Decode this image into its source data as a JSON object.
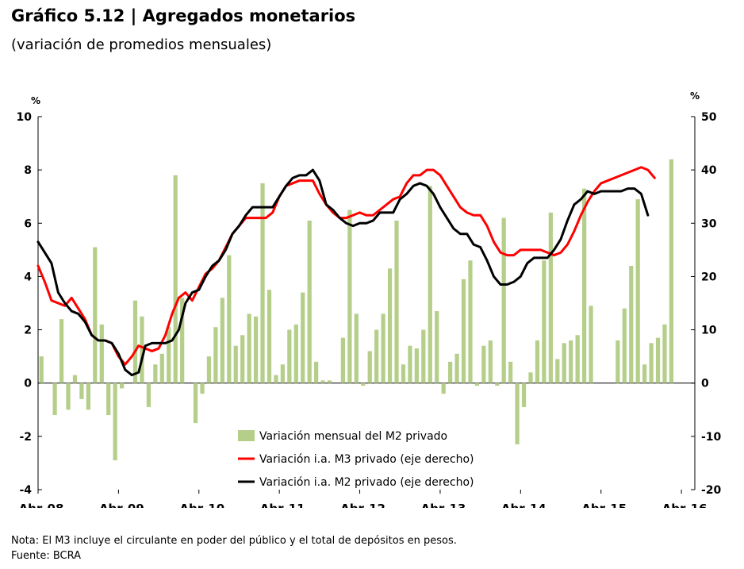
{
  "header": {
    "title": "Gráfico 5.12 | Agregados monetarios",
    "subtitle": "(variación de promedios mensuales)"
  },
  "footer": {
    "note": "Nota: El M3 incluye el circulante en poder del público y el total de depósitos en pesos.",
    "source": "Fuente: BCRA"
  },
  "chart_data": {
    "type": "bar+line",
    "left_axis": {
      "unit": "%",
      "min": -4,
      "max": 10,
      "ticks": [
        -4,
        -2,
        0,
        2,
        4,
        6,
        8,
        10
      ]
    },
    "right_axis": {
      "unit": "%",
      "min": -20,
      "max": 50,
      "ticks": [
        -20,
        -10,
        0,
        10,
        20,
        30,
        40,
        50
      ]
    },
    "x_tick_labels": [
      "Abr-08",
      "Abr-09",
      "Abr-10",
      "Abr-11",
      "Abr-12",
      "Abr-13",
      "Abr-14",
      "Abr-15",
      "Abr-16"
    ],
    "months_start": "Abr-08",
    "legend_position": "bottom-center",
    "series": [
      {
        "name": "Variación mensual del M2 privado",
        "type": "bar",
        "axis": "left",
        "color": "#b5cf8a",
        "values": [
          1.0,
          0,
          -1.2,
          2.4,
          -1.0,
          0.3,
          -0.6,
          -1.0,
          5.1,
          2.2,
          -1.2,
          -2.9,
          -0.2,
          0,
          3.1,
          2.5,
          -0.9,
          0.7,
          1.1,
          2.1,
          7.8,
          3.2,
          0,
          -1.5,
          -0.4,
          1.0,
          2.1,
          3.2,
          4.8,
          1.4,
          1.8,
          2.6,
          2.5,
          7.5,
          3.5,
          0.3,
          0.7,
          2.0,
          2.2,
          3.4,
          6.1,
          0.8,
          0.1,
          0.1,
          0,
          1.7,
          6.5,
          2.6,
          -0.1,
          1.2,
          2.0,
          2.6,
          4.3,
          6.1,
          0.7,
          1.4,
          1.3,
          2.0,
          7.4,
          2.7,
          -0.4,
          0.8,
          1.1,
          3.9,
          4.6,
          -0.1,
          1.4,
          1.6,
          -0.1,
          6.2,
          0.8,
          -2.3,
          -0.9,
          0.4,
          1.6,
          4.6,
          6.4,
          0.9,
          1.5,
          1.6,
          1.8,
          7.3,
          2.9,
          0,
          0,
          0,
          1.6,
          2.8,
          4.4,
          6.9,
          0.7,
          1.5,
          1.7,
          2.2,
          8.4
        ]
      },
      {
        "name": "Variación i.a. M3 privado (eje derecho)",
        "type": "line",
        "axis": "right",
        "color": "#ff0000",
        "values": [
          22,
          19,
          15.5,
          15,
          14.5,
          16,
          14,
          12,
          9,
          8,
          8,
          7.5,
          5,
          3.5,
          5,
          7,
          6.5,
          6,
          6.5,
          9,
          13,
          16,
          17,
          15.5,
          18,
          20.5,
          21.5,
          23,
          25.5,
          28,
          29.5,
          31,
          31,
          31,
          31,
          32,
          35,
          37,
          37.5,
          38,
          38,
          38,
          35.5,
          33.5,
          32,
          31,
          31,
          31.5,
          32,
          31.5,
          31.5,
          32.5,
          33.5,
          34.5,
          35,
          37.5,
          39,
          39,
          40,
          40,
          39,
          37,
          35,
          33,
          32,
          31.5,
          31.5,
          29.5,
          26.5,
          24.5,
          24,
          24,
          25,
          25,
          25,
          25,
          24.5,
          24,
          24.5,
          26,
          28.5,
          31.5,
          34,
          36,
          37.5,
          38,
          38.5,
          39,
          39.5,
          40,
          40.5,
          40,
          38.5
        ]
      },
      {
        "name": "Variación i.a. M2 privado (eje derecho)",
        "type": "line",
        "axis": "right",
        "color": "#000000",
        "values": [
          26.5,
          24.5,
          22.5,
          17,
          15,
          13.5,
          13,
          11.5,
          9,
          8,
          8,
          7.5,
          5.5,
          2.5,
          1.5,
          2,
          7,
          7.5,
          7.5,
          7.5,
          8,
          10,
          15,
          17,
          17.5,
          20,
          22,
          23,
          25,
          28,
          29.5,
          31.5,
          33,
          33,
          33,
          33,
          35,
          37,
          38.5,
          39,
          39,
          40,
          38,
          33.5,
          32.5,
          31,
          30,
          29.5,
          30,
          30,
          30.5,
          32,
          32,
          32,
          34.5,
          35.5,
          37,
          37.5,
          37,
          35.5,
          33,
          31,
          29,
          28,
          28,
          26,
          25.5,
          23,
          20,
          18.5,
          18.5,
          19,
          20,
          22.5,
          23.5,
          23.5,
          23.5,
          25,
          27,
          30.5,
          33.5,
          34.5,
          36,
          35.5,
          36,
          36,
          36,
          36,
          36.5,
          36.5,
          35.5,
          31.5
        ]
      }
    ]
  }
}
